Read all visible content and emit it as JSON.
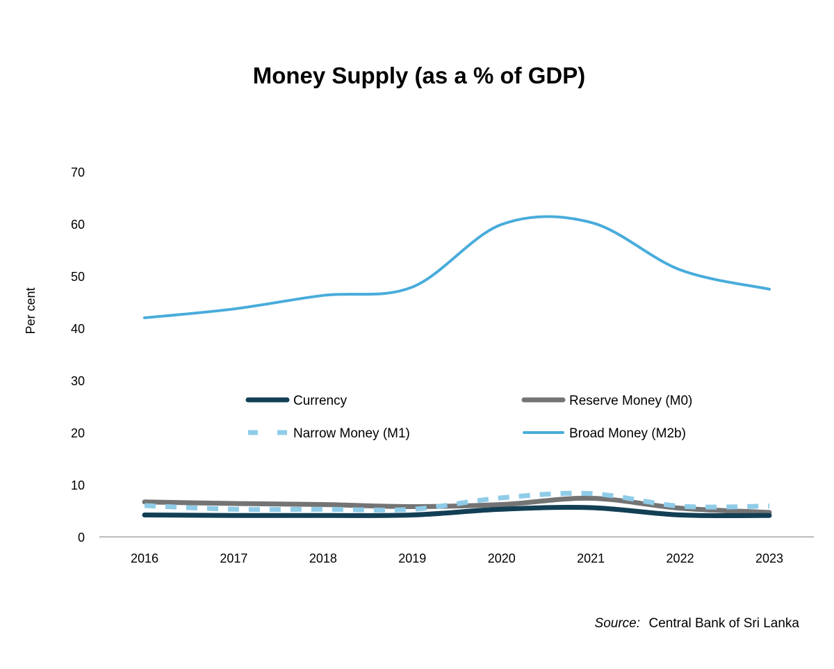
{
  "chart_data": {
    "type": "line",
    "title": "Money Supply (as a % of GDP)",
    "xlabel": "",
    "ylabel": "Per cent",
    "ylim": [
      0,
      70
    ],
    "yticks": [
      0,
      10,
      20,
      30,
      40,
      50,
      60,
      70
    ],
    "categories": [
      "2016",
      "2017",
      "2018",
      "2019",
      "2020",
      "2021",
      "2022",
      "2023"
    ],
    "grid": false,
    "legend_position": "center",
    "series": [
      {
        "name": "Currency",
        "values": [
          4.2,
          4.1,
          4.1,
          4.2,
          5.3,
          5.6,
          4.2,
          4.1
        ],
        "color": "#133f55",
        "style": "solid"
      },
      {
        "name": "Reserve Money (M0)",
        "values": [
          6.7,
          6.4,
          6.2,
          5.8,
          6.2,
          7.4,
          5.5,
          4.7
        ],
        "color": "#747474",
        "style": "solid"
      },
      {
        "name": "Narrow Money (M1)",
        "values": [
          6.0,
          5.3,
          5.3,
          5.3,
          7.5,
          8.3,
          5.9,
          5.9
        ],
        "color": "#8fcce8",
        "style": "dashed"
      },
      {
        "name": "Broad Money (M2b)",
        "values": [
          42.0,
          43.7,
          46.3,
          47.9,
          59.9,
          60.3,
          51.2,
          47.5
        ],
        "color": "#48acdb",
        "style": "solid"
      }
    ]
  },
  "source": {
    "label": "Source:",
    "text": "Central Bank of Sri Lanka"
  }
}
